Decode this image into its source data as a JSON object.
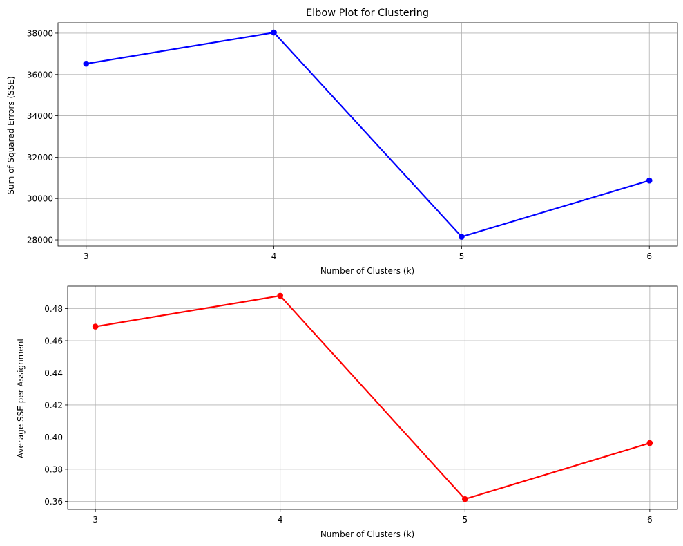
{
  "chart_data": [
    {
      "type": "line",
      "title": "Elbow Plot for Clustering",
      "xlabel": "Number of Clusters (k)",
      "ylabel": "Sum of Squared Errors (SSE)",
      "x": [
        3,
        4,
        5,
        6
      ],
      "xticks": [
        "3",
        "4",
        "5",
        "6"
      ],
      "xlim": [
        2.85,
        6.15
      ],
      "ylim": [
        27700,
        38500
      ],
      "yticks": [
        28000,
        30000,
        32000,
        34000,
        36000,
        38000
      ],
      "ytick_labels": [
        "28000",
        "30000",
        "32000",
        "34000",
        "36000",
        "38000"
      ],
      "grid": true,
      "series": [
        {
          "values": [
            36520,
            38030,
            28150,
            30870
          ],
          "color": "#0000ff",
          "marker": "circle"
        }
      ]
    },
    {
      "type": "line",
      "title": "",
      "xlabel": "Number of Clusters (k)",
      "ylabel": "Average SSE per Assignment",
      "x": [
        3,
        4,
        5,
        6
      ],
      "xticks": [
        "3",
        "4",
        "5",
        "6"
      ],
      "xlim": [
        2.85,
        6.15
      ],
      "ylim": [
        0.355,
        0.494
      ],
      "yticks": [
        0.36,
        0.38,
        0.4,
        0.42,
        0.44,
        0.46,
        0.48
      ],
      "ytick_labels": [
        "0.36",
        "0.38",
        "0.40",
        "0.42",
        "0.44",
        "0.46",
        "0.48"
      ],
      "grid": true,
      "series": [
        {
          "values": [
            0.4688,
            0.488,
            0.3614,
            0.3963
          ],
          "color": "#ff0000",
          "marker": "circle"
        }
      ]
    }
  ]
}
